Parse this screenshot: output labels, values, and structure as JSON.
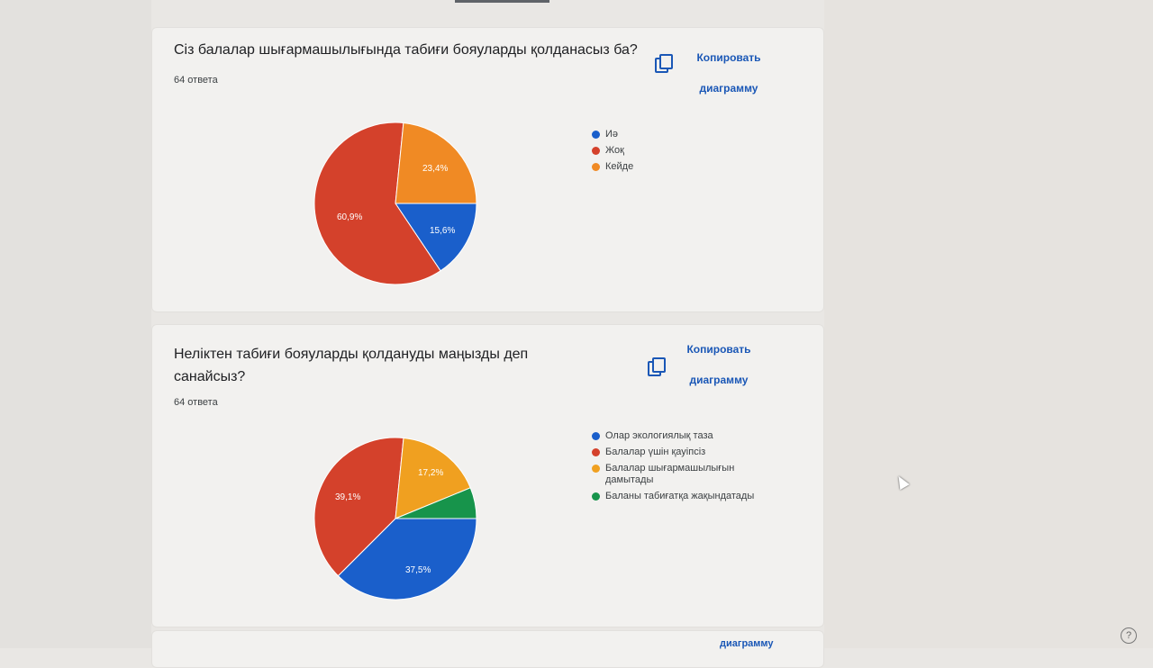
{
  "questions": [
    {
      "title": "Сіз балалар шығармашылығында табиғи бояуларды қолданасыз ба?",
      "count": "64 ответа",
      "copy_label": "Копировать диаграмму",
      "legend": [
        {
          "label": "Иә",
          "color": "#1a5fcb"
        },
        {
          "label": "Жоқ",
          "color": "#d4412b"
        },
        {
          "label": "Кейде",
          "color": "#f08a24"
        }
      ],
      "labels": {
        "a": "60,9%",
        "b": "23,4%",
        "c": "15,6%"
      }
    },
    {
      "title": "Неліктен табиғи бояуларды қолдануды маңызды деп санайсыз?",
      "count": "64 ответа",
      "copy_label": "Копировать диаграмму",
      "legend": [
        {
          "label": "Олар экологиялық таза",
          "color": "#1a5fcb"
        },
        {
          "label": "Балалар үшін қауіпсіз",
          "color": "#d4412b"
        },
        {
          "label": "Балалар шығармашылығын дамытады",
          "color": "#f0a020"
        },
        {
          "label": "Баланы табиғатқа жақындатады",
          "color": "#17944b"
        }
      ],
      "labels": {
        "a": "39,1%",
        "b": "17,2%",
        "c": "37,5%"
      }
    }
  ],
  "chart_data": [
    {
      "type": "pie",
      "categories": [
        "Иә",
        "Жоқ",
        "Кейде"
      ],
      "values": [
        15.6,
        60.9,
        23.4
      ],
      "colors": [
        "#1a5fcb",
        "#d4412b",
        "#f08a24"
      ],
      "title": "Сіз балалар шығармашылығында табиғи бояуларды қолданасыз ба?"
    },
    {
      "type": "pie",
      "categories": [
        "Олар экологиялық таза",
        "Балалар үшін қауіпсіз",
        "Балалар шығармашылығын дамытады",
        "Баланы табиғатқа жақындатады"
      ],
      "values": [
        37.5,
        39.1,
        17.2,
        6.2
      ],
      "colors": [
        "#1a5fcb",
        "#d4412b",
        "#f0a020",
        "#17944b"
      ],
      "title": "Неліктен табиғи бояуларды қолдануды маңызды деп санайсыз?"
    }
  ],
  "footer_card": {
    "copy_label": "диаграмму"
  },
  "help": "?"
}
